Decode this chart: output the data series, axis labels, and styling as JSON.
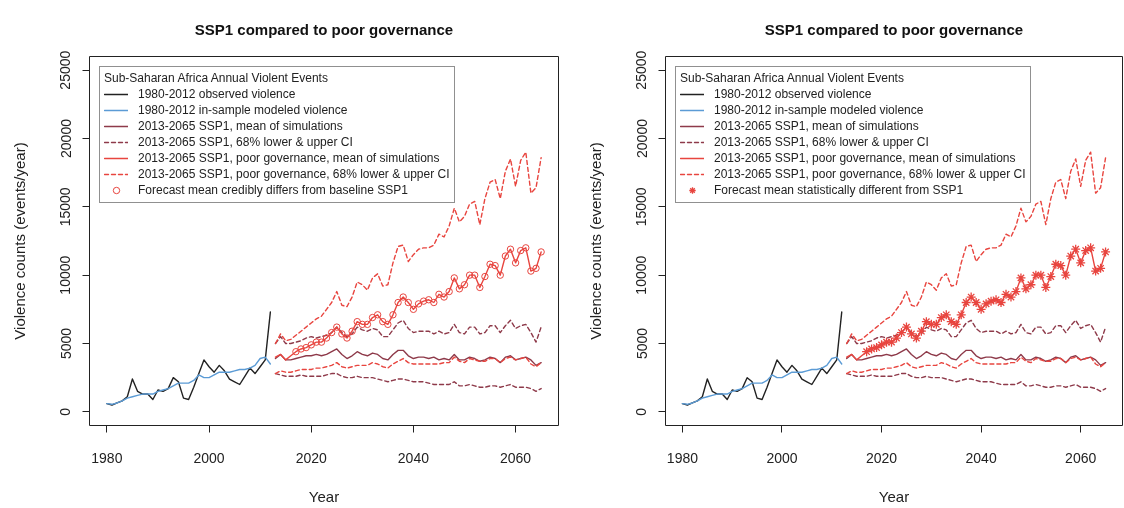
{
  "chart_data": [
    {
      "type": "line",
      "title": "SSP1 compared to poor governance",
      "xlabel": "Year",
      "ylabel": "Violence counts (events/year)",
      "legend_title": "Sub-Saharan Africa Annual Violent Events",
      "legend": "top left",
      "grid": false,
      "xlim": [
        1976.6,
        2068.4
      ],
      "ylim": [
        -1000,
        26000
      ],
      "xticks": [
        1980,
        2000,
        2020,
        2040,
        2060
      ],
      "yticks": [
        0,
        5000,
        10000,
        15000,
        20000,
        25000
      ],
      "series": [
        {
          "name": "1980-2012 observed violence",
          "color": "#222222",
          "line_style": "solid",
          "x": [
            1980,
            1981,
            1982,
            1983,
            1984,
            1985,
            1986,
            1987,
            1988,
            1989,
            1990,
            1991,
            1992,
            1993,
            1994,
            1995,
            1996,
            1997,
            1998,
            1999,
            2000,
            2001,
            2002,
            2003,
            2004,
            2005,
            2006,
            2007,
            2008,
            2009,
            2010,
            2011,
            2012
          ],
          "values": [
            600,
            500,
            650,
            800,
            1100,
            2400,
            1500,
            1300,
            1300,
            900,
            1600,
            1500,
            1700,
            2500,
            2200,
            1000,
            900,
            1800,
            2800,
            3800,
            3300,
            2900,
            3400,
            3000,
            2400,
            2200,
            2000,
            2600,
            3200,
            2800,
            3300,
            3800,
            7300
          ]
        },
        {
          "name": "1980-2012 in-sample modeled violence",
          "color": "#5b9bd5",
          "line_style": "solid",
          "x": [
            1980,
            1981,
            1982,
            1983,
            1984,
            1985,
            1986,
            1987,
            1988,
            1989,
            1990,
            1991,
            1992,
            1993,
            1994,
            1995,
            1996,
            1997,
            1998,
            1999,
            2000,
            2001,
            2002,
            2003,
            2004,
            2005,
            2006,
            2007,
            2008,
            2009,
            2010,
            2011,
            2012
          ],
          "values": [
            600,
            550,
            650,
            800,
            1000,
            1100,
            1200,
            1300,
            1300,
            1300,
            1500,
            1600,
            1700,
            1900,
            2100,
            2100,
            2100,
            2300,
            2700,
            2500,
            2500,
            2700,
            2900,
            2900,
            2900,
            3000,
            3100,
            3100,
            3200,
            3400,
            3900,
            4000,
            3500
          ]
        },
        {
          "name": "2013-2065 SSP1, mean of simulations",
          "color": "#8e3a4a",
          "line_style": "solid",
          "x": [
            2013,
            2014,
            2015,
            2016,
            2017,
            2018,
            2019,
            2020,
            2021,
            2022,
            2023,
            2024,
            2025,
            2026,
            2027,
            2028,
            2029,
            2030,
            2031,
            2032,
            2033,
            2034,
            2035,
            2036,
            2037,
            2038,
            2039,
            2040,
            2041,
            2042,
            2043,
            2044,
            2045,
            2046,
            2047,
            2048,
            2049,
            2050,
            2051,
            2052,
            2053,
            2054,
            2055,
            2056,
            2057,
            2058,
            2059,
            2060,
            2061,
            2062,
            2063,
            2064,
            2065
          ],
          "values": [
            3900,
            4200,
            3800,
            3800,
            3900,
            4000,
            4100,
            4100,
            4200,
            4100,
            4200,
            4400,
            4600,
            4200,
            3900,
            4100,
            4400,
            4200,
            4100,
            4300,
            4200,
            3900,
            3800,
            4200,
            4500,
            4500,
            4100,
            3900,
            4000,
            4000,
            3900,
            4000,
            3800,
            3900,
            3800,
            4200,
            3800,
            3800,
            4000,
            3900,
            3700,
            3800,
            4000,
            3900,
            3600,
            4000,
            4100,
            3800,
            3900,
            4000,
            3800,
            3400,
            3600
          ]
        },
        {
          "name": "2013-2065 SSP1, 68% lower & upper CI",
          "color": "#8e3a4a",
          "line_style": "dashed",
          "x": [
            2013,
            2014,
            2015,
            2016,
            2017,
            2018,
            2019,
            2020,
            2021,
            2022,
            2023,
            2024,
            2025,
            2026,
            2027,
            2028,
            2029,
            2030,
            2031,
            2032,
            2033,
            2034,
            2035,
            2036,
            2037,
            2038,
            2039,
            2040,
            2041,
            2042,
            2043,
            2044,
            2045,
            2046,
            2047,
            2048,
            2049,
            2050,
            2051,
            2052,
            2053,
            2054,
            2055,
            2056,
            2057,
            2058,
            2059,
            2060,
            2061,
            2062,
            2063,
            2064,
            2065
          ],
          "values": [
            5000,
            5500,
            5000,
            5000,
            5100,
            5200,
            5400,
            5500,
            5400,
            5500,
            5600,
            5800,
            6200,
            5800,
            5500,
            5700,
            6200,
            6000,
            5900,
            6100,
            6000,
            5500,
            5500,
            6000,
            6500,
            6700,
            6100,
            5800,
            5900,
            5900,
            5900,
            5700,
            5900,
            5700,
            5800,
            6400,
            5800,
            5700,
            6200,
            6200,
            5700,
            5800,
            6300,
            6300,
            5800,
            6300,
            6700,
            6100,
            6300,
            6400,
            5800,
            5100,
            6200
          ]
        },
        {
          "color": "#8e3a4a",
          "line_style": "dashed",
          "x": [
            2013,
            2014,
            2015,
            2016,
            2017,
            2018,
            2019,
            2020,
            2021,
            2022,
            2023,
            2024,
            2025,
            2026,
            2027,
            2028,
            2029,
            2030,
            2031,
            2032,
            2033,
            2034,
            2035,
            2036,
            2037,
            2038,
            2039,
            2040,
            2041,
            2042,
            2043,
            2044,
            2045,
            2046,
            2047,
            2048,
            2049,
            2050,
            2051,
            2052,
            2053,
            2054,
            2055,
            2056,
            2057,
            2058,
            2059,
            2060,
            2061,
            2062,
            2063,
            2064,
            2065
          ],
          "values": [
            2800,
            2700,
            2600,
            2600,
            2600,
            2700,
            2600,
            2600,
            2600,
            2600,
            2700,
            2800,
            2800,
            2600,
            2500,
            2500,
            2600,
            2500,
            2500,
            2500,
            2400,
            2300,
            2200,
            2300,
            2400,
            2400,
            2300,
            2200,
            2200,
            2200,
            2100,
            2000,
            2000,
            2000,
            2000,
            2200,
            1900,
            1900,
            2000,
            1900,
            1800,
            1800,
            1900,
            1900,
            1800,
            1900,
            2000,
            1800,
            1800,
            1800,
            1700,
            1500,
            1700
          ]
        },
        {
          "name": "2013-2065 SSP1, poor governance, mean of simulations",
          "color": "#e8453f",
          "line_style": "solid",
          "x": [
            2013,
            2014,
            2015,
            2016,
            2017,
            2018,
            2019,
            2020,
            2021,
            2022,
            2023,
            2024,
            2025,
            2026,
            2027,
            2028,
            2029,
            2030,
            2031,
            2032,
            2033,
            2034,
            2035,
            2036,
            2037,
            2038,
            2039,
            2040,
            2041,
            2042,
            2043,
            2044,
            2045,
            2046,
            2047,
            2048,
            2049,
            2050,
            2051,
            2052,
            2053,
            2054,
            2055,
            2056,
            2057,
            2058,
            2059,
            2060,
            2061,
            2062,
            2063,
            2064,
            2065
          ],
          "values": [
            4000,
            4200,
            3800,
            4100,
            4400,
            4600,
            4700,
            4900,
            5100,
            5100,
            5400,
            5800,
            6200,
            5700,
            5400,
            5900,
            6600,
            6400,
            6400,
            6900,
            7100,
            6600,
            6400,
            7100,
            8000,
            8400,
            8000,
            7500,
            7900,
            8100,
            8200,
            8000,
            8600,
            8400,
            8800,
            9800,
            9000,
            9300,
            10000,
            10000,
            9100,
            9900,
            10800,
            10700,
            10000,
            11400,
            11900,
            10900,
            11800,
            12000,
            10300,
            10500,
            11700
          ]
        },
        {
          "name": "2013-2065 SSP1, poor governance, 68% lower & upper CI",
          "color": "#e8453f",
          "line_style": "dashed",
          "x": [
            2013,
            2014,
            2015,
            2016,
            2017,
            2018,
            2019,
            2020,
            2021,
            2022,
            2023,
            2024,
            2025,
            2026,
            2027,
            2028,
            2029,
            2030,
            2031,
            2032,
            2033,
            2034,
            2035,
            2036,
            2037,
            2038,
            2039,
            2040,
            2041,
            2042,
            2043,
            2044,
            2045,
            2046,
            2047,
            2048,
            2049,
            2050,
            2051,
            2052,
            2053,
            2054,
            2055,
            2056,
            2057,
            2058,
            2059,
            2060,
            2061,
            2062,
            2063,
            2064,
            2065
          ],
          "values": [
            5000,
            5700,
            5200,
            5300,
            5600,
            5900,
            6200,
            6500,
            6800,
            7000,
            7500,
            8000,
            8800,
            7800,
            7700,
            8400,
            9500,
            9300,
            8900,
            9800,
            10100,
            9200,
            9300,
            10900,
            12100,
            12200,
            11000,
            11500,
            11900,
            12000,
            12000,
            12200,
            13000,
            12800,
            13600,
            14900,
            13900,
            14300,
            15200,
            15400,
            13700,
            15600,
            16800,
            17000,
            15600,
            17600,
            18500,
            16500,
            18400,
            19000,
            16000,
            16400,
            18600
          ]
        },
        {
          "color": "#e8453f",
          "line_style": "dashed",
          "x": [
            2013,
            2014,
            2015,
            2016,
            2017,
            2018,
            2019,
            2020,
            2021,
            2022,
            2023,
            2024,
            2025,
            2026,
            2027,
            2028,
            2029,
            2030,
            2031,
            2032,
            2033,
            2034,
            2035,
            2036,
            2037,
            2038,
            2039,
            2040,
            2041,
            2042,
            2043,
            2044,
            2045,
            2046,
            2047,
            2048,
            2049,
            2050,
            2051,
            2052,
            2053,
            2054,
            2055,
            2056,
            2057,
            2058,
            2059,
            2060,
            2061,
            2062,
            2063,
            2064,
            2065
          ],
          "values": [
            2800,
            3000,
            2900,
            2900,
            3000,
            3100,
            3100,
            3100,
            3200,
            3200,
            3300,
            3400,
            3600,
            3300,
            3200,
            3300,
            3400,
            3400,
            3400,
            3600,
            3500,
            3300,
            3200,
            3500,
            3700,
            3900,
            3600,
            3500,
            3500,
            3500,
            3500,
            3500,
            3500,
            3600,
            3600,
            4000,
            3700,
            3600,
            3900,
            3800,
            3700,
            3700,
            3900,
            3900,
            3600,
            3900,
            4000,
            3800,
            3900,
            4000,
            3500,
            3300,
            3600
          ]
        },
        {
          "name": "Forecast mean credibly differs from baseline SSP1",
          "color": "#e8453f",
          "type": "scatter",
          "marker": "circle",
          "x": [
            2017,
            2018,
            2019,
            2020,
            2021,
            2022,
            2023,
            2024,
            2025,
            2026,
            2027,
            2028,
            2029,
            2030,
            2031,
            2032,
            2033,
            2034,
            2035,
            2036,
            2037,
            2038,
            2039,
            2040,
            2041,
            2042,
            2043,
            2044,
            2045,
            2046,
            2047,
            2048,
            2049,
            2050,
            2051,
            2052,
            2053,
            2054,
            2055,
            2056,
            2057,
            2058,
            2059,
            2060,
            2061,
            2062,
            2063,
            2064,
            2065
          ],
          "values": [
            4400,
            4600,
            4700,
            4900,
            5100,
            5100,
            5400,
            5800,
            6200,
            5700,
            5400,
            5900,
            6600,
            6400,
            6400,
            6900,
            7100,
            6600,
            6400,
            7100,
            8000,
            8400,
            8000,
            7500,
            7900,
            8100,
            8200,
            8000,
            8600,
            8400,
            8800,
            9800,
            9000,
            9300,
            10000,
            10000,
            9100,
            9900,
            10800,
            10700,
            10000,
            11400,
            11900,
            10900,
            11800,
            12000,
            10300,
            10500,
            11700
          ]
        }
      ]
    },
    {
      "type": "line",
      "title": "SSP1 compared to poor governance",
      "xlabel": "Year",
      "ylabel": "Violence counts (events/year)",
      "legend_title": "Sub-Saharan Africa Annual Violent Events",
      "legend": "top left",
      "grid": false,
      "xlim": [
        1976.6,
        2068.4
      ],
      "ylim": [
        -1000,
        26000
      ],
      "xticks": [
        1980,
        2000,
        2020,
        2040,
        2060
      ],
      "yticks": [
        0,
        5000,
        10000,
        15000,
        20000,
        25000
      ],
      "series": [
        {
          "name": "1980-2012 observed violence",
          "color": "#222222",
          "line_style": "solid",
          "x": [
            1980,
            1981,
            1982,
            1983,
            1984,
            1985,
            1986,
            1987,
            1988,
            1989,
            1990,
            1991,
            1992,
            1993,
            1994,
            1995,
            1996,
            1997,
            1998,
            1999,
            2000,
            2001,
            2002,
            2003,
            2004,
            2005,
            2006,
            2007,
            2008,
            2009,
            2010,
            2011,
            2012
          ],
          "values": [
            600,
            500,
            650,
            800,
            1100,
            2400,
            1500,
            1300,
            1300,
            900,
            1600,
            1500,
            1700,
            2500,
            2200,
            1000,
            900,
            1800,
            2800,
            3800,
            3300,
            2900,
            3400,
            3000,
            2400,
            2200,
            2000,
            2600,
            3200,
            2800,
            3300,
            3800,
            7300
          ]
        },
        {
          "name": "1980-2012 in-sample modeled violence",
          "color": "#5b9bd5",
          "line_style": "solid",
          "x": [
            1980,
            1981,
            1982,
            1983,
            1984,
            1985,
            1986,
            1987,
            1988,
            1989,
            1990,
            1991,
            1992,
            1993,
            1994,
            1995,
            1996,
            1997,
            1998,
            1999,
            2000,
            2001,
            2002,
            2003,
            2004,
            2005,
            2006,
            2007,
            2008,
            2009,
            2010,
            2011,
            2012
          ],
          "values": [
            600,
            550,
            650,
            800,
            1000,
            1100,
            1200,
            1300,
            1300,
            1300,
            1500,
            1600,
            1700,
            1900,
            2100,
            2100,
            2100,
            2300,
            2700,
            2500,
            2500,
            2700,
            2900,
            2900,
            2900,
            3000,
            3100,
            3100,
            3200,
            3400,
            3900,
            4000,
            3500
          ]
        },
        {
          "name": "2013-2065 SSP1, mean of simulations",
          "color": "#8e3a4a",
          "line_style": "solid",
          "x": [
            2013,
            2014,
            2015,
            2016,
            2017,
            2018,
            2019,
            2020,
            2021,
            2022,
            2023,
            2024,
            2025,
            2026,
            2027,
            2028,
            2029,
            2030,
            2031,
            2032,
            2033,
            2034,
            2035,
            2036,
            2037,
            2038,
            2039,
            2040,
            2041,
            2042,
            2043,
            2044,
            2045,
            2046,
            2047,
            2048,
            2049,
            2050,
            2051,
            2052,
            2053,
            2054,
            2055,
            2056,
            2057,
            2058,
            2059,
            2060,
            2061,
            2062,
            2063,
            2064,
            2065
          ],
          "values": [
            3900,
            4200,
            3800,
            3800,
            3900,
            4000,
            4100,
            4100,
            4200,
            4100,
            4200,
            4400,
            4600,
            4200,
            3900,
            4100,
            4400,
            4200,
            4100,
            4300,
            4200,
            3900,
            3800,
            4200,
            4500,
            4500,
            4100,
            3900,
            4000,
            4000,
            3900,
            4000,
            3800,
            3900,
            3800,
            4200,
            3800,
            3800,
            4000,
            3900,
            3700,
            3800,
            4000,
            3900,
            3600,
            4000,
            4100,
            3800,
            3900,
            4000,
            3800,
            3400,
            3600
          ]
        },
        {
          "name": "2013-2065 SSP1, 68% lower & upper CI",
          "color": "#8e3a4a",
          "line_style": "dashed",
          "x": [
            2013,
            2014,
            2015,
            2016,
            2017,
            2018,
            2019,
            2020,
            2021,
            2022,
            2023,
            2024,
            2025,
            2026,
            2027,
            2028,
            2029,
            2030,
            2031,
            2032,
            2033,
            2034,
            2035,
            2036,
            2037,
            2038,
            2039,
            2040,
            2041,
            2042,
            2043,
            2044,
            2045,
            2046,
            2047,
            2048,
            2049,
            2050,
            2051,
            2052,
            2053,
            2054,
            2055,
            2056,
            2057,
            2058,
            2059,
            2060,
            2061,
            2062,
            2063,
            2064,
            2065
          ],
          "values": [
            5000,
            5500,
            5000,
            5000,
            5100,
            5200,
            5400,
            5500,
            5400,
            5500,
            5600,
            5800,
            6200,
            5800,
            5500,
            5700,
            6200,
            6000,
            5900,
            6100,
            6000,
            5500,
            5500,
            6000,
            6500,
            6700,
            6100,
            5800,
            5900,
            5900,
            5900,
            5700,
            5900,
            5700,
            5800,
            6400,
            5800,
            5700,
            6200,
            6200,
            5700,
            5800,
            6300,
            6300,
            5800,
            6300,
            6700,
            6100,
            6300,
            6400,
            5800,
            5100,
            6200
          ]
        },
        {
          "color": "#8e3a4a",
          "line_style": "dashed",
          "x": [
            2013,
            2014,
            2015,
            2016,
            2017,
            2018,
            2019,
            2020,
            2021,
            2022,
            2023,
            2024,
            2025,
            2026,
            2027,
            2028,
            2029,
            2030,
            2031,
            2032,
            2033,
            2034,
            2035,
            2036,
            2037,
            2038,
            2039,
            2040,
            2041,
            2042,
            2043,
            2044,
            2045,
            2046,
            2047,
            2048,
            2049,
            2050,
            2051,
            2052,
            2053,
            2054,
            2055,
            2056,
            2057,
            2058,
            2059,
            2060,
            2061,
            2062,
            2063,
            2064,
            2065
          ],
          "values": [
            2800,
            2700,
            2600,
            2600,
            2600,
            2700,
            2600,
            2600,
            2600,
            2600,
            2700,
            2800,
            2800,
            2600,
            2500,
            2500,
            2600,
            2500,
            2500,
            2500,
            2400,
            2300,
            2200,
            2300,
            2400,
            2400,
            2300,
            2200,
            2200,
            2200,
            2100,
            2000,
            2000,
            2000,
            2000,
            2200,
            1900,
            1900,
            2000,
            1900,
            1800,
            1800,
            1900,
            1900,
            1800,
            1900,
            2000,
            1800,
            1800,
            1800,
            1700,
            1500,
            1700
          ]
        },
        {
          "name": "2013-2065 SSP1, poor governance, mean of simulations",
          "color": "#e8453f",
          "line_style": "solid",
          "x": [
            2013,
            2014,
            2015,
            2016,
            2017,
            2018,
            2019,
            2020,
            2021,
            2022,
            2023,
            2024,
            2025,
            2026,
            2027,
            2028,
            2029,
            2030,
            2031,
            2032,
            2033,
            2034,
            2035,
            2036,
            2037,
            2038,
            2039,
            2040,
            2041,
            2042,
            2043,
            2044,
            2045,
            2046,
            2047,
            2048,
            2049,
            2050,
            2051,
            2052,
            2053,
            2054,
            2055,
            2056,
            2057,
            2058,
            2059,
            2060,
            2061,
            2062,
            2063,
            2064,
            2065
          ],
          "values": [
            4000,
            4200,
            3800,
            4100,
            4400,
            4600,
            4700,
            4900,
            5100,
            5100,
            5400,
            5800,
            6200,
            5700,
            5400,
            5900,
            6600,
            6400,
            6400,
            6900,
            7100,
            6600,
            6400,
            7100,
            8000,
            8400,
            8000,
            7500,
            7900,
            8100,
            8200,
            8000,
            8600,
            8400,
            8800,
            9800,
            9000,
            9300,
            10000,
            10000,
            9100,
            9900,
            10800,
            10700,
            10000,
            11400,
            11900,
            10900,
            11800,
            12000,
            10300,
            10500,
            11700
          ]
        },
        {
          "name": "2013-2065 SSP1, poor governance, 68% lower & upper CI",
          "color": "#e8453f",
          "line_style": "dashed",
          "x": [
            2013,
            2014,
            2015,
            2016,
            2017,
            2018,
            2019,
            2020,
            2021,
            2022,
            2023,
            2024,
            2025,
            2026,
            2027,
            2028,
            2029,
            2030,
            2031,
            2032,
            2033,
            2034,
            2035,
            2036,
            2037,
            2038,
            2039,
            2040,
            2041,
            2042,
            2043,
            2044,
            2045,
            2046,
            2047,
            2048,
            2049,
            2050,
            2051,
            2052,
            2053,
            2054,
            2055,
            2056,
            2057,
            2058,
            2059,
            2060,
            2061,
            2062,
            2063,
            2064,
            2065
          ],
          "values": [
            5000,
            5700,
            5200,
            5300,
            5600,
            5900,
            6200,
            6500,
            6800,
            7000,
            7500,
            8000,
            8800,
            7800,
            7700,
            8400,
            9500,
            9300,
            8900,
            9800,
            10100,
            9200,
            9300,
            10900,
            12100,
            12200,
            11000,
            11500,
            11900,
            12000,
            12000,
            12200,
            13000,
            12800,
            13600,
            14900,
            13900,
            14300,
            15200,
            15400,
            13700,
            15600,
            16800,
            17000,
            15600,
            17600,
            18500,
            16500,
            18400,
            19000,
            16000,
            16400,
            18600
          ]
        },
        {
          "color": "#e8453f",
          "line_style": "dashed",
          "x": [
            2013,
            2014,
            2015,
            2016,
            2017,
            2018,
            2019,
            2020,
            2021,
            2022,
            2023,
            2024,
            2025,
            2026,
            2027,
            2028,
            2029,
            2030,
            2031,
            2032,
            2033,
            2034,
            2035,
            2036,
            2037,
            2038,
            2039,
            2040,
            2041,
            2042,
            2043,
            2044,
            2045,
            2046,
            2047,
            2048,
            2049,
            2050,
            2051,
            2052,
            2053,
            2054,
            2055,
            2056,
            2057,
            2058,
            2059,
            2060,
            2061,
            2062,
            2063,
            2064,
            2065
          ],
          "values": [
            2800,
            3000,
            2900,
            2900,
            3000,
            3100,
            3100,
            3100,
            3200,
            3200,
            3300,
            3400,
            3600,
            3300,
            3200,
            3300,
            3400,
            3400,
            3400,
            3600,
            3500,
            3300,
            3200,
            3500,
            3700,
            3900,
            3600,
            3500,
            3500,
            3500,
            3500,
            3500,
            3500,
            3600,
            3600,
            4000,
            3700,
            3600,
            3900,
            3800,
            3700,
            3700,
            3900,
            3900,
            3600,
            3900,
            4000,
            3800,
            3900,
            4000,
            3500,
            3300,
            3600
          ]
        },
        {
          "name": "Forecast mean statistically different from SSP1",
          "color": "#e8453f",
          "type": "scatter",
          "marker": "cross",
          "x": [
            2017,
            2018,
            2019,
            2020,
            2021,
            2022,
            2023,
            2024,
            2025,
            2026,
            2027,
            2028,
            2029,
            2030,
            2031,
            2032,
            2033,
            2034,
            2035,
            2036,
            2037,
            2038,
            2039,
            2040,
            2041,
            2042,
            2043,
            2044,
            2045,
            2046,
            2047,
            2048,
            2049,
            2050,
            2051,
            2052,
            2053,
            2054,
            2055,
            2056,
            2057,
            2058,
            2059,
            2060,
            2061,
            2062,
            2063,
            2064,
            2065
          ],
          "values": [
            4400,
            4600,
            4700,
            4900,
            5100,
            5100,
            5400,
            5800,
            6200,
            5700,
            5400,
            5900,
            6600,
            6400,
            6400,
            6900,
            7100,
            6600,
            6400,
            7100,
            8000,
            8400,
            8000,
            7500,
            7900,
            8100,
            8200,
            8000,
            8600,
            8400,
            8800,
            9800,
            9000,
            9300,
            10000,
            10000,
            9100,
            9900,
            10800,
            10700,
            10000,
            11400,
            11900,
            10900,
            11800,
            12000,
            10300,
            10500,
            11700
          ]
        }
      ]
    }
  ]
}
